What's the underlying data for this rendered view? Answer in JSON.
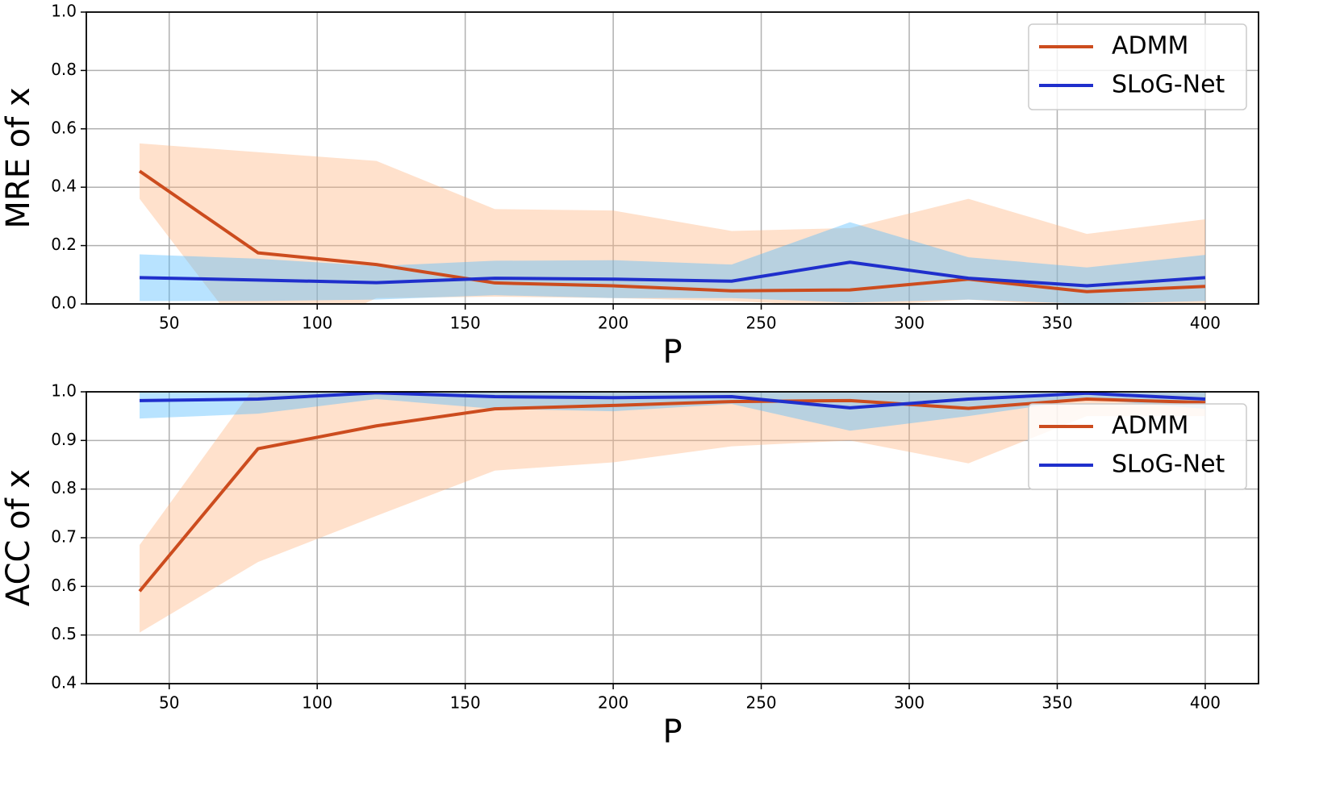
{
  "chart_data": [
    {
      "type": "line",
      "xlabel": "P",
      "ylabel": "MRE of x",
      "x": [
        40,
        80,
        120,
        160,
        200,
        240,
        280,
        320,
        360,
        400
      ],
      "xlim": [
        22,
        418
      ],
      "xticks": [
        50,
        100,
        150,
        200,
        250,
        300,
        350,
        400
      ],
      "ylim": [
        0,
        1
      ],
      "yticks": [
        {
          "value": 0,
          "label": "0.0"
        },
        0.2,
        0.4,
        0.6,
        0.8,
        {
          "value": 1,
          "label": "1.0"
        }
      ],
      "grid": true,
      "legend": "upper right",
      "series": [
        {
          "name": "ADMM",
          "color": "#cc4c1e",
          "band_color": "#ffb380",
          "values": [
            0.455,
            0.175,
            0.135,
            0.072,
            0.062,
            0.045,
            0.048,
            0.085,
            0.042,
            0.06
          ],
          "upper": [
            0.55,
            0.52,
            0.49,
            0.325,
            0.32,
            0.25,
            0.26,
            0.36,
            0.24,
            0.29
          ],
          "lower": [
            0.36,
            -0.17,
            0.02,
            0.025,
            0.02,
            0.01,
            -0.01,
            0.015,
            -0.01,
            -0.01
          ]
        },
        {
          "name": "SLoG-Net",
          "color": "#1f2fcc",
          "band_color": "#4db8ff",
          "values": [
            0.09,
            0.082,
            0.073,
            0.088,
            0.085,
            0.078,
            0.143,
            0.088,
            0.062,
            0.09
          ],
          "upper": [
            0.17,
            0.155,
            0.13,
            0.148,
            0.15,
            0.135,
            0.28,
            0.16,
            0.125,
            0.168
          ],
          "lower": [
            0.01,
            0.01,
            0.015,
            0.03,
            0.02,
            0.02,
            0.005,
            0.015,
            0.0,
            0.01
          ]
        }
      ]
    },
    {
      "type": "line",
      "xlabel": "P",
      "ylabel": "ACC of x",
      "x": [
        40,
        80,
        120,
        160,
        200,
        240,
        280,
        320,
        360,
        400
      ],
      "xlim": [
        22,
        418
      ],
      "xticks": [
        50,
        100,
        150,
        200,
        250,
        300,
        350,
        400
      ],
      "ylim": [
        0.4,
        1
      ],
      "yticks": [
        0.4,
        0.5,
        0.6,
        0.7,
        0.8,
        0.9,
        {
          "value": 1,
          "label": "1.0"
        }
      ],
      "grid": true,
      "legend": "upper right",
      "series": [
        {
          "name": "ADMM",
          "color": "#cc4c1e",
          "band_color": "#ffb380",
          "values": [
            0.59,
            0.883,
            0.93,
            0.965,
            0.972,
            0.98,
            0.982,
            0.966,
            0.985,
            0.978
          ],
          "upper": [
            0.685,
            1.02,
            1.01,
            1.0,
            1.0,
            1.0,
            1.0,
            1.0,
            1.0,
            1.0
          ],
          "lower": [
            0.505,
            0.65,
            0.745,
            0.838,
            0.855,
            0.888,
            0.9,
            0.853,
            0.95,
            0.95
          ]
        },
        {
          "name": "SLoG-Net",
          "color": "#1f2fcc",
          "band_color": "#4db8ff",
          "values": [
            0.982,
            0.985,
            0.998,
            0.99,
            0.988,
            0.99,
            0.967,
            0.985,
            0.997,
            0.985
          ],
          "upper": [
            1.02,
            1.02,
            1.02,
            1.02,
            1.02,
            1.02,
            1.02,
            1.02,
            1.02,
            1.02
          ],
          "lower": [
            0.945,
            0.955,
            0.985,
            0.965,
            0.96,
            0.975,
            0.92,
            0.95,
            0.985,
            0.965
          ]
        }
      ]
    }
  ]
}
